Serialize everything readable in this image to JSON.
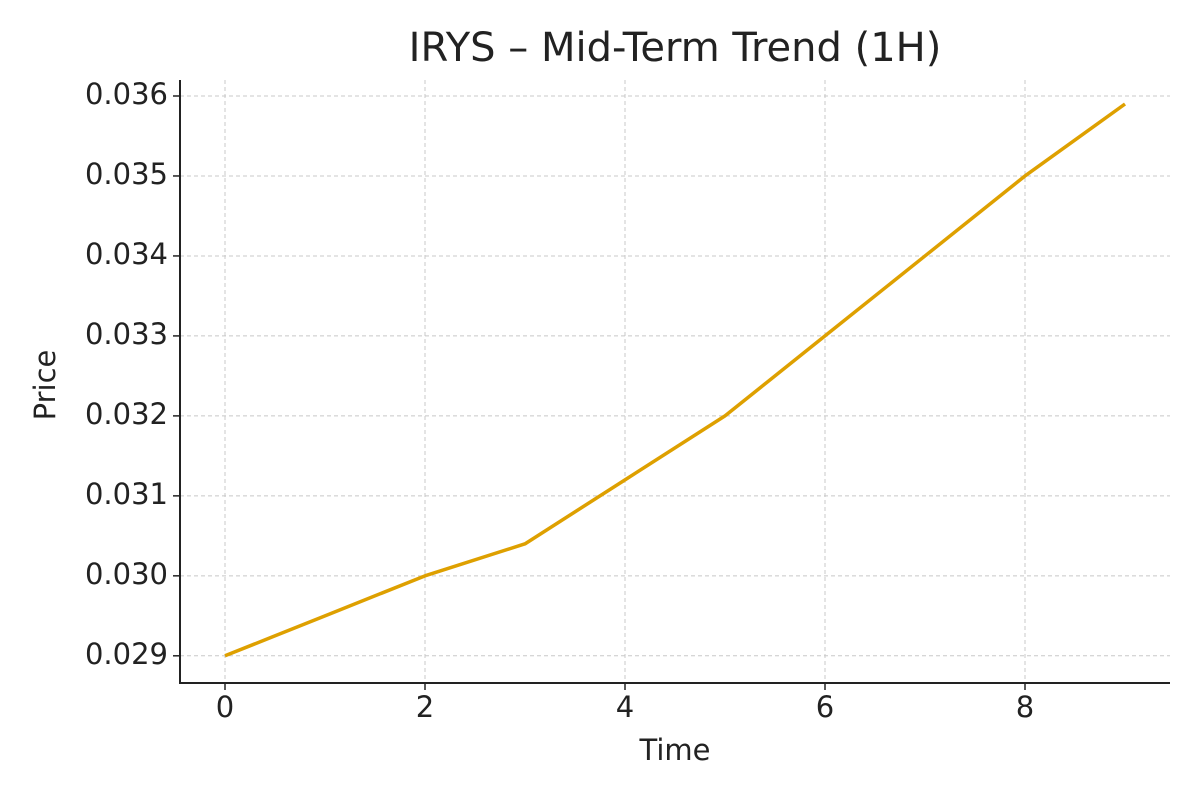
{
  "chart_data": {
    "type": "line",
    "title": "IRYS – Mid-Term Trend (1H)",
    "x_label": "Time",
    "y_label": "Price",
    "x": [
      0,
      1,
      2,
      3,
      4,
      5,
      6,
      7,
      8,
      9
    ],
    "series": [
      {
        "name": "IRYS",
        "color": "#dea000",
        "values": [
          0.029,
          0.0295,
          0.03,
          0.0304,
          0.0312,
          0.032,
          0.033,
          0.034,
          0.035,
          0.0359
        ]
      }
    ],
    "xlim": [
      -0.45,
      9.45
    ],
    "ylim": [
      0.02866,
      0.0362
    ],
    "xticks": [
      0,
      2,
      4,
      6,
      8
    ],
    "yticks": [
      0.029,
      {
        "value": 0.03,
        "label": "0.030"
      },
      0.031,
      0.032,
      0.033,
      0.034,
      0.035,
      0.036
    ],
    "grid": true
  }
}
